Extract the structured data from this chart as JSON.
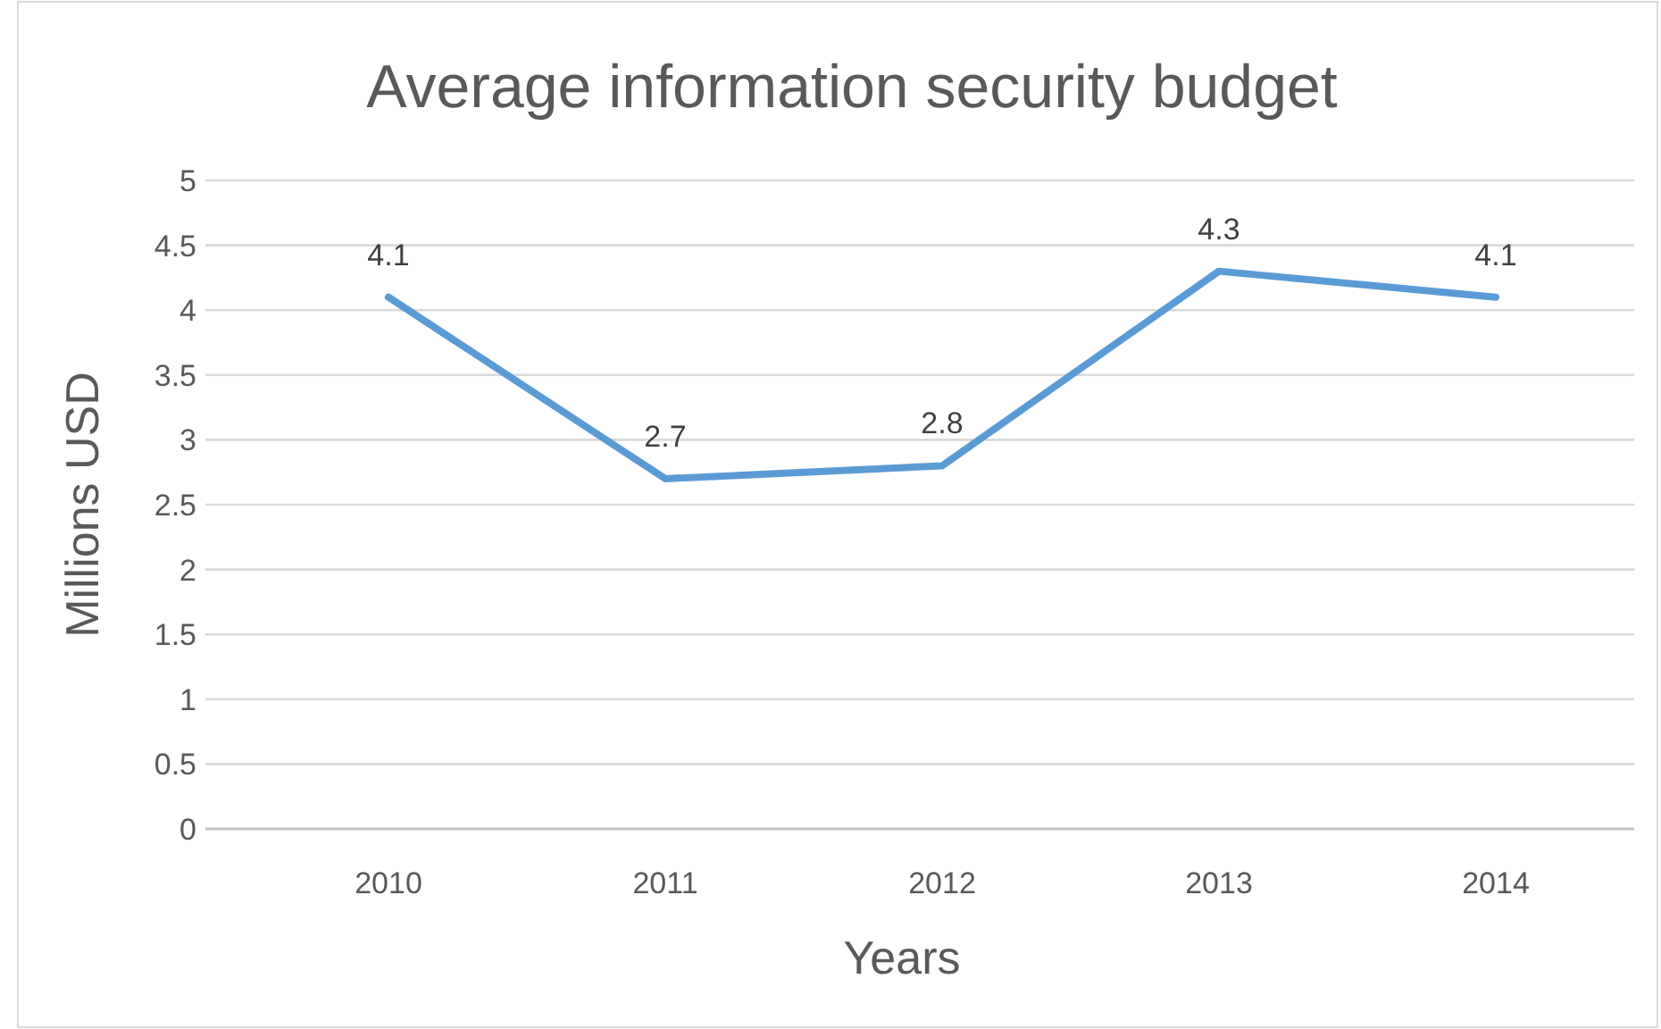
{
  "chart_data": {
    "type": "line",
    "title": "Average information security budget",
    "xlabel": "Years",
    "ylabel": "Millions USD",
    "categories": [
      "2010",
      "2011",
      "2012",
      "2013",
      "2014"
    ],
    "series": [
      {
        "color": "#5b9bd5",
        "values": [
          4.1,
          2.7,
          2.8,
          4.3,
          4.1
        ]
      }
    ],
    "ylim": [
      0,
      5
    ],
    "yticks": [
      0,
      0.5,
      1,
      1.5,
      2,
      2.5,
      3,
      3.5,
      4,
      4.5,
      5
    ],
    "grid": "y",
    "data_labels": true,
    "marker": "none",
    "line_style": "solid"
  }
}
